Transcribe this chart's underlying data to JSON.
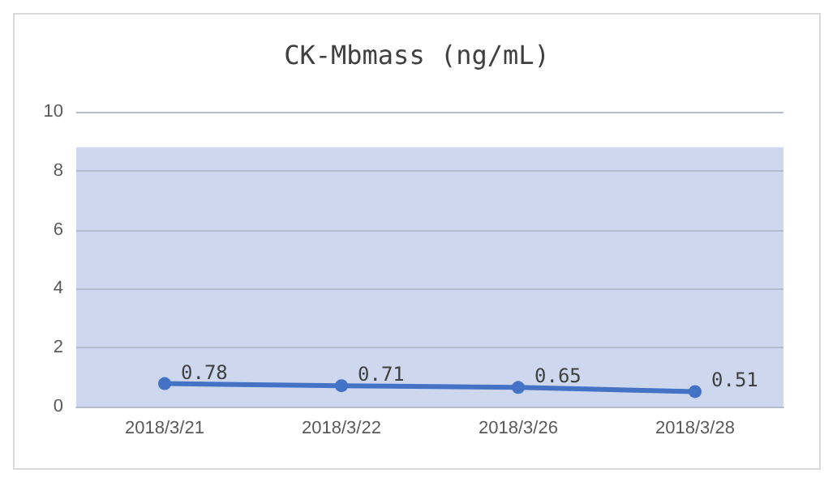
{
  "chart_data": {
    "type": "line",
    "title": "CK-Mbmass (ng/mL)",
    "categories": [
      "2018/3/21",
      "2018/3/22",
      "2018/3/26",
      "2018/3/28"
    ],
    "series": [
      {
        "color": "#4472c4",
        "values": [
          0.78,
          0.71,
          0.65,
          0.51
        ]
      }
    ],
    "ylim": [
      0,
      10
    ],
    "yticks": [
      0,
      2,
      4,
      6,
      8,
      10
    ],
    "grid": "y",
    "marker": "circle",
    "line_style": "solid",
    "data_labels": true,
    "bands": [
      {
        "axis": "y",
        "from": 0,
        "to": 8.8,
        "color": "#cdd8ee"
      }
    ]
  }
}
